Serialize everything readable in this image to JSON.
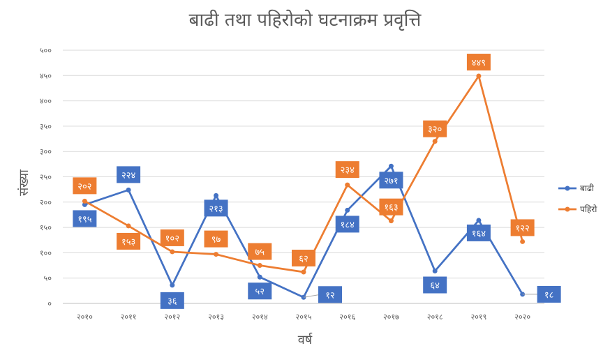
{
  "chart_data": {
    "type": "line",
    "title": "बाढी तथा पहिरोको घटनाक्रम प्रवृत्ति",
    "xlabel": "वर्ष",
    "ylabel": "संख्या",
    "categories": [
      "२०१०",
      "२०११",
      "२०१२",
      "२०१३",
      "२०१४",
      "२०१५",
      "२०१६",
      "२०१७",
      "२०१८",
      "२०१९",
      "२०२०"
    ],
    "x_values": [
      2010,
      2011,
      2012,
      2013,
      2014,
      2015,
      2016,
      2017,
      2018,
      2019,
      2020
    ],
    "ylim": [
      0,
      500
    ],
    "yticks": [
      {
        "value": 0,
        "label": "०"
      },
      {
        "value": 50,
        "label": "५०"
      },
      {
        "value": 100,
        "label": "१००"
      },
      {
        "value": 150,
        "label": "१५०"
      },
      {
        "value": 200,
        "label": "२००"
      },
      {
        "value": 250,
        "label": "२५०"
      },
      {
        "value": 300,
        "label": "३००"
      },
      {
        "value": 350,
        "label": "३५०"
      },
      {
        "value": 400,
        "label": "४००"
      },
      {
        "value": 450,
        "label": "४५०"
      },
      {
        "value": 500,
        "label": "५००"
      }
    ],
    "grid": true,
    "legend": "right",
    "series": [
      {
        "name": "बाढी",
        "color": "#4472C4",
        "values": [
          195,
          224,
          36,
          213,
          52,
          12,
          184,
          271,
          64,
          164,
          18
        ],
        "labels": [
          "१९५",
          "२२४",
          "३६",
          "२१३",
          "५२",
          "१२",
          "१८४",
          "२७१",
          "६४",
          "१६४",
          "१८"
        ]
      },
      {
        "name": "पहिरो",
        "color": "#ED7D31",
        "values": [
          202,
          153,
          102,
          97,
          75,
          62,
          234,
          163,
          320,
          449,
          122
        ],
        "labels": [
          "२०२",
          "१५३",
          "१०२",
          "९७",
          "७५",
          "६२",
          "२३४",
          "१६३",
          "३२०",
          "४४९",
          "१२२"
        ]
      }
    ]
  }
}
